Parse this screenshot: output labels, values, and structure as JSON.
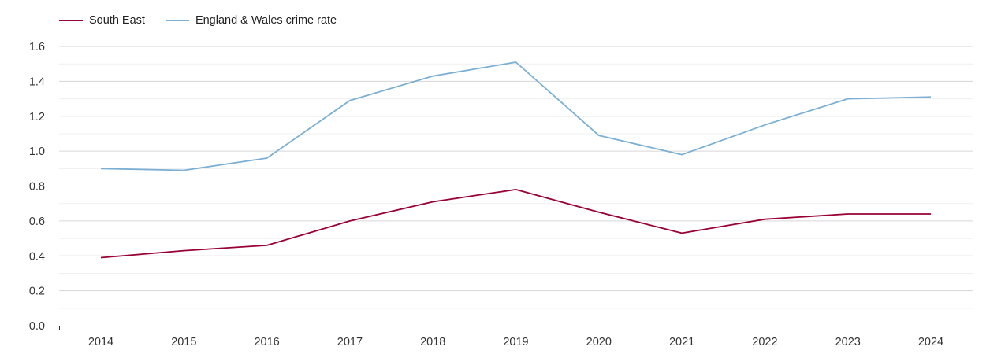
{
  "chart_data": {
    "type": "line",
    "title": "",
    "xlabel": "",
    "ylabel": "",
    "categories": [
      "2014",
      "2015",
      "2016",
      "2017",
      "2018",
      "2019",
      "2020",
      "2021",
      "2022",
      "2023",
      "2024"
    ],
    "ylim": [
      0,
      1.6
    ],
    "yticks": [
      "0.0",
      "0.2",
      "0.4",
      "0.6",
      "0.8",
      "1.0",
      "1.2",
      "1.4",
      "1.6"
    ],
    "grid": true,
    "legend_position": "top-left",
    "series": [
      {
        "name": "South East",
        "color": "#990033",
        "values": [
          0.39,
          0.43,
          0.46,
          0.6,
          0.71,
          0.78,
          0.65,
          0.53,
          0.61,
          0.64,
          0.64
        ]
      },
      {
        "name": "England & Wales crime rate",
        "color": "#7bafd4",
        "values": [
          0.9,
          0.89,
          0.96,
          1.29,
          1.43,
          1.51,
          1.09,
          0.98,
          1.15,
          1.3,
          1.31
        ]
      }
    ]
  }
}
